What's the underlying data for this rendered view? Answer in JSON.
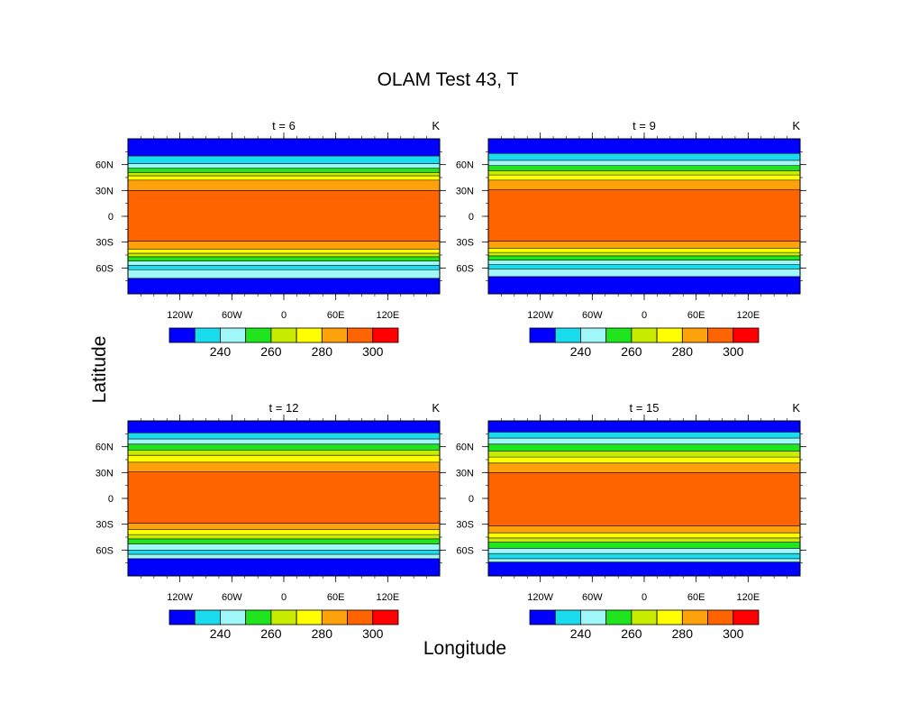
{
  "figure": {
    "title": "OLAM Test 43, T",
    "xlabel": "Longitude",
    "ylabel": "Latitude"
  },
  "chart_data": [
    {
      "type": "heatmap",
      "title": "t = 6",
      "units": "K",
      "x_ticks": [
        "120W",
        "60W",
        "0",
        "60E",
        "120E"
      ],
      "y_ticks": [
        "60N",
        "30N",
        "0",
        "30S",
        "60S"
      ],
      "xlim": [
        -180,
        180
      ],
      "ylim": [
        -90,
        90
      ],
      "bands": [
        {
          "lat": [
            70,
            90
          ],
          "level": 0
        },
        {
          "lat": [
            61,
            70
          ],
          "level": 1
        },
        {
          "lat": [
            56,
            61
          ],
          "level": 2
        },
        {
          "lat": [
            51,
            56
          ],
          "level": 3
        },
        {
          "lat": [
            47,
            51
          ],
          "level": 4
        },
        {
          "lat": [
            42,
            47
          ],
          "level": 5
        },
        {
          "lat": [
            30,
            42
          ],
          "level": 6
        },
        {
          "lat": [
            -29,
            30
          ],
          "level": 7
        },
        {
          "lat": [
            -38,
            -29
          ],
          "level": 6
        },
        {
          "lat": [
            -43,
            -38
          ],
          "level": 5
        },
        {
          "lat": [
            -47,
            -43
          ],
          "level": 4
        },
        {
          "lat": [
            -52,
            -47
          ],
          "level": 3
        },
        {
          "lat": [
            -57,
            -52
          ],
          "level": 2
        },
        {
          "lat": [
            -62,
            -57
          ],
          "level": 1
        },
        {
          "lat": [
            -72,
            -62
          ],
          "level": 2
        },
        {
          "lat": [
            -90,
            -72
          ],
          "level": 0
        }
      ]
    },
    {
      "type": "heatmap",
      "title": "t = 9",
      "units": "K",
      "x_ticks": [
        "120W",
        "60W",
        "0",
        "60E",
        "120E"
      ],
      "y_ticks": [
        "60N",
        "30N",
        "0",
        "30S",
        "60S"
      ],
      "xlim": [
        -180,
        180
      ],
      "ylim": [
        -90,
        90
      ],
      "bands": [
        {
          "lat": [
            73,
            90
          ],
          "level": 0
        },
        {
          "lat": [
            65,
            73
          ],
          "level": 1
        },
        {
          "lat": [
            59,
            65
          ],
          "level": 2
        },
        {
          "lat": [
            53,
            59
          ],
          "level": 3
        },
        {
          "lat": [
            48,
            53
          ],
          "level": 4
        },
        {
          "lat": [
            42,
            48
          ],
          "level": 5
        },
        {
          "lat": [
            31,
            42
          ],
          "level": 6
        },
        {
          "lat": [
            -29,
            31
          ],
          "level": 7
        },
        {
          "lat": [
            -37,
            -29
          ],
          "level": 6
        },
        {
          "lat": [
            -42,
            -37
          ],
          "level": 5
        },
        {
          "lat": [
            -46,
            -42
          ],
          "level": 4
        },
        {
          "lat": [
            -51,
            -46
          ],
          "level": 3
        },
        {
          "lat": [
            -56,
            -51
          ],
          "level": 2
        },
        {
          "lat": [
            -61,
            -56
          ],
          "level": 1
        },
        {
          "lat": [
            -70,
            -61
          ],
          "level": 2
        },
        {
          "lat": [
            -90,
            -70
          ],
          "level": 0
        }
      ]
    },
    {
      "type": "heatmap",
      "title": "t = 12",
      "units": "K",
      "x_ticks": [
        "120W",
        "60W",
        "0",
        "60E",
        "120E"
      ],
      "y_ticks": [
        "60N",
        "30N",
        "0",
        "30S",
        "60S"
      ],
      "xlim": [
        -180,
        180
      ],
      "ylim": [
        -90,
        90
      ],
      "bands": [
        {
          "lat": [
            76,
            90
          ],
          "level": 0
        },
        {
          "lat": [
            69,
            76
          ],
          "level": 1
        },
        {
          "lat": [
            63,
            69
          ],
          "level": 2
        },
        {
          "lat": [
            56,
            63
          ],
          "level": 3
        },
        {
          "lat": [
            50,
            56
          ],
          "level": 4
        },
        {
          "lat": [
            42,
            50
          ],
          "level": 5
        },
        {
          "lat": [
            31,
            42
          ],
          "level": 6
        },
        {
          "lat": [
            -29,
            31
          ],
          "level": 7
        },
        {
          "lat": [
            -36,
            -29
          ],
          "level": 6
        },
        {
          "lat": [
            -42,
            -36
          ],
          "level": 5
        },
        {
          "lat": [
            -47,
            -42
          ],
          "level": 4
        },
        {
          "lat": [
            -53,
            -47
          ],
          "level": 3
        },
        {
          "lat": [
            -60,
            -53
          ],
          "level": 2
        },
        {
          "lat": [
            -65,
            -60
          ],
          "level": 1
        },
        {
          "lat": [
            -70,
            -65
          ],
          "level": 2
        },
        {
          "lat": [
            -90,
            -70
          ],
          "level": 0
        }
      ]
    },
    {
      "type": "heatmap",
      "title": "t = 15",
      "units": "K",
      "x_ticks": [
        "120W",
        "60W",
        "0",
        "60E",
        "120E"
      ],
      "y_ticks": [
        "60N",
        "30N",
        "0",
        "30S",
        "60S"
      ],
      "xlim": [
        -180,
        180
      ],
      "ylim": [
        -90,
        90
      ],
      "bands": [
        {
          "lat": [
            77,
            90
          ],
          "level": 0
        },
        {
          "lat": [
            70,
            77
          ],
          "level": 1
        },
        {
          "lat": [
            63,
            70
          ],
          "level": 2
        },
        {
          "lat": [
            55,
            63
          ],
          "level": 3
        },
        {
          "lat": [
            48,
            55
          ],
          "level": 4
        },
        {
          "lat": [
            41,
            48
          ],
          "level": 5
        },
        {
          "lat": [
            30,
            41
          ],
          "level": 6
        },
        {
          "lat": [
            -32,
            30
          ],
          "level": 7
        },
        {
          "lat": [
            -40,
            -32
          ],
          "level": 6
        },
        {
          "lat": [
            -46,
            -40
          ],
          "level": 5
        },
        {
          "lat": [
            -51,
            -46
          ],
          "level": 4
        },
        {
          "lat": [
            -58,
            -51
          ],
          "level": 3
        },
        {
          "lat": [
            -64,
            -58
          ],
          "level": 2
        },
        {
          "lat": [
            -70,
            -64
          ],
          "level": 1
        },
        {
          "lat": [
            -74,
            -70
          ],
          "level": 2
        },
        {
          "lat": [
            -90,
            -74
          ],
          "level": 0
        }
      ]
    }
  ],
  "colorbar": {
    "colors": [
      "#0000ff",
      "#19ddee",
      "#9ff7f7",
      "#1ee51e",
      "#c8ec00",
      "#ffff00",
      "#ffa10a",
      "#ff6400",
      "#ff0000"
    ],
    "labels": [
      "240",
      "260",
      "280",
      "300"
    ]
  }
}
